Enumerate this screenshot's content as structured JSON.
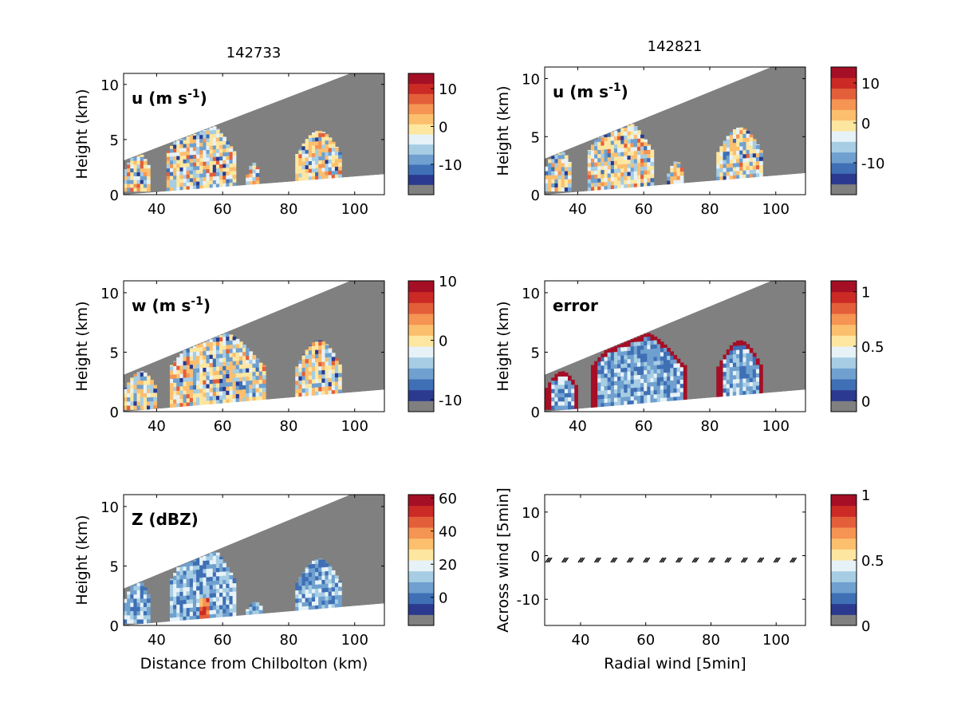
{
  "figure": {
    "column_titles": [
      "142733",
      "142821"
    ]
  },
  "colors": {
    "no_data": "#808080",
    "background": "#ffffff",
    "palette": [
      "#808080",
      "#2b3a8f",
      "#3f6fb5",
      "#6fa0cf",
      "#a6cde3",
      "#e6f2f7",
      "#fde7a0",
      "#fbbf6e",
      "#f59453",
      "#e35f3a",
      "#cc2a25",
      "#a50f26"
    ]
  },
  "chart_data": [
    {
      "id": "u-142733",
      "type": "heatmap",
      "panel_label": "u (m s-1)",
      "panel_label_parts": {
        "base": "u (m s",
        "sup": "-1",
        "end": ")"
      },
      "ylabel": "Height (km)",
      "xlabel": "",
      "xlim": [
        30,
        109
      ],
      "ylim": [
        0,
        11
      ],
      "xticks": [
        40,
        60,
        80,
        100
      ],
      "yticks": [
        0,
        5,
        10
      ],
      "colorbar": {
        "levels": 11,
        "min": -18,
        "max": 14,
        "ticks": [
          10,
          0,
          -10
        ],
        "tick_labels": [
          "10",
          "0",
          "-10"
        ]
      },
      "field_type": "wind",
      "echo_set": "A"
    },
    {
      "id": "u-142821",
      "type": "heatmap",
      "panel_label": "u (m s-1)",
      "panel_label_parts": {
        "base": "u (m s",
        "sup": "-1",
        "end": ")"
      },
      "ylabel": "Height (km)",
      "xlabel": "",
      "xlim": [
        30,
        109
      ],
      "ylim": [
        0,
        11
      ],
      "xticks": [
        40,
        60,
        80,
        100
      ],
      "yticks": [
        0,
        5,
        10
      ],
      "colorbar": {
        "levels": 11,
        "min": -18,
        "max": 14,
        "ticks": [
          10,
          0,
          -10
        ],
        "tick_labels": [
          "10",
          "0",
          "-10"
        ]
      },
      "field_type": "wind",
      "echo_set": "B"
    },
    {
      "id": "w-142733",
      "type": "heatmap",
      "panel_label": "w (m s-1)",
      "panel_label_parts": {
        "base": "w (m s",
        "sup": "-1",
        "end": ")"
      },
      "ylabel": "Height (km)",
      "xlabel": "",
      "xlim": [
        30,
        109
      ],
      "ylim": [
        0,
        11
      ],
      "xticks": [
        40,
        60,
        80,
        100
      ],
      "yticks": [
        0,
        5,
        10
      ],
      "colorbar": {
        "levels": 11,
        "min": -12,
        "max": 10,
        "ticks": [
          10,
          0,
          -10
        ],
        "tick_labels": [
          "10",
          "0",
          "-10"
        ]
      },
      "field_type": "wind",
      "echo_set": "C"
    },
    {
      "id": "error-142821",
      "type": "heatmap",
      "panel_label": "error",
      "panel_label_parts": {
        "base": "error",
        "sup": "",
        "end": ""
      },
      "ylabel": "Height (km)",
      "xlabel": "",
      "xlim": [
        30,
        109
      ],
      "ylim": [
        0,
        11
      ],
      "xticks": [
        40,
        60,
        80,
        100
      ],
      "yticks": [
        0,
        5,
        10
      ],
      "colorbar": {
        "levels": 11,
        "min": -0.1,
        "max": 1.1,
        "ticks": [
          1,
          0.5,
          0
        ],
        "tick_labels": [
          "1",
          "0.5",
          "0"
        ]
      },
      "field_type": "error",
      "echo_set": "C"
    },
    {
      "id": "z-142733",
      "type": "heatmap",
      "panel_label": "Z (dBZ)",
      "panel_label_parts": {
        "base": "Z (dBZ)",
        "sup": "",
        "end": ""
      },
      "ylabel": "Height (km)",
      "xlabel": "Distance from Chilbolton (km)",
      "xlim": [
        30,
        109
      ],
      "ylim": [
        0,
        11
      ],
      "xticks": [
        40,
        60,
        80,
        100
      ],
      "yticks": [
        0,
        5,
        10
      ],
      "colorbar": {
        "levels": 11,
        "min": -17,
        "max": 62,
        "ticks": [
          60,
          40,
          20,
          0
        ],
        "tick_labels": [
          "60",
          "40",
          "20",
          "0"
        ]
      },
      "field_type": "reflectivity",
      "echo_set": "D"
    },
    {
      "id": "wind-vectors",
      "type": "scatter",
      "panel_label": "",
      "panel_label_parts": {
        "base": "",
        "sup": "",
        "end": ""
      },
      "ylabel": "Across wind [5min]",
      "xlabel": "Radial wind [5min]",
      "xlim": [
        29,
        109
      ],
      "ylim": [
        -16,
        14
      ],
      "xticks": [
        40,
        60,
        80,
        100
      ],
      "yticks": [
        -10,
        0,
        10
      ],
      "colorbar": {
        "levels": 11,
        "min": 0,
        "max": 1,
        "ticks": [
          1,
          0.5,
          0
        ],
        "tick_labels": [
          "1",
          "0.5",
          "0"
        ]
      },
      "x": [
        30,
        35,
        40,
        45,
        50,
        55,
        60,
        65,
        70,
        75,
        80,
        85,
        90,
        95,
        100,
        105
      ],
      "y": [
        -1,
        -1,
        -1,
        -1,
        -1,
        -1,
        -1,
        -1,
        -1,
        -1,
        -1,
        -1,
        -1,
        -1,
        -1,
        -1
      ]
    }
  ]
}
